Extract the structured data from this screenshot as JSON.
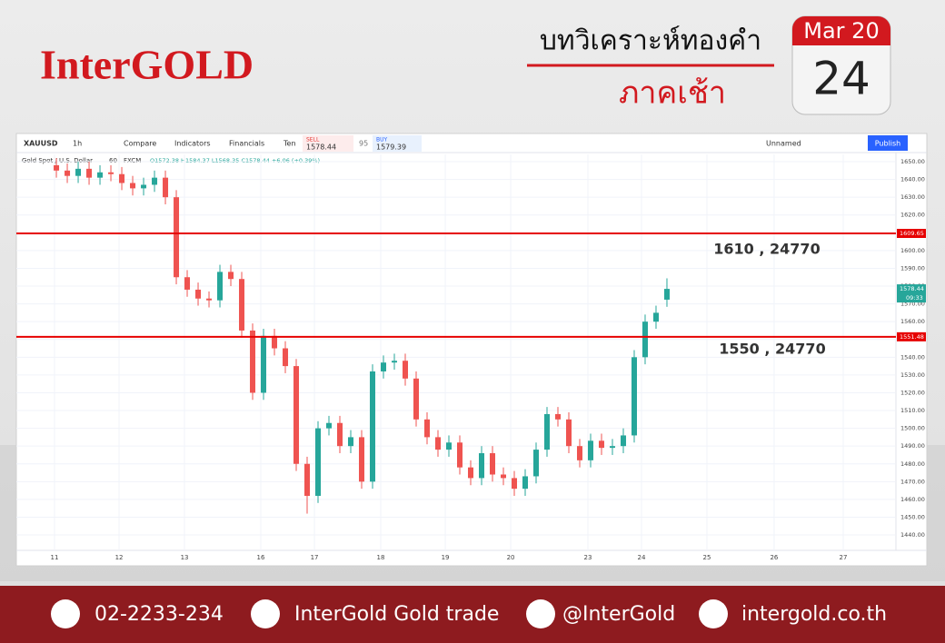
{
  "header": {
    "logo": "InterGOLD",
    "title": "บทวิเคราะห์ทองคำ",
    "subtitle": "ภาคเช้า",
    "calendar": {
      "month": "Mar 20",
      "day": "24"
    }
  },
  "toolbar": {
    "symbol": "XAUUSD",
    "interval": "1h",
    "items": [
      "Compare",
      "Indicators",
      "Financials",
      "Ten"
    ],
    "sell_label": "SELL",
    "sell": "1578.44",
    "spread": "95",
    "buy_label": "BUY",
    "buy": "1579.39",
    "layout": "Unnamed",
    "publish": "Publish"
  },
  "legend": {
    "name": "Gold Spot / U.S. Dollar",
    "interval": "60",
    "source": "FXCM",
    "ohlc": "O1572.38 H1584.37 L1568.35 C1578.44 +6.06 (+0.39%)"
  },
  "chart_data": {
    "type": "candlestick",
    "open": [
      1648,
      1645,
      1642,
      1646,
      1641,
      1644,
      1643,
      1638,
      1635,
      1637,
      1641,
      1630,
      1585,
      1578,
      1573,
      1572,
      1588,
      1584,
      1555,
      1520,
      1552,
      1545,
      1535,
      1480,
      1462,
      1500,
      1503,
      1490,
      1495,
      1470,
      1532,
      1537,
      1538,
      1528,
      1505,
      1495,
      1488,
      1492,
      1478,
      1472,
      1486,
      1474,
      1472,
      1466,
      1473,
      1488,
      1508,
      1505,
      1490,
      1482,
      1493,
      1489,
      1490,
      1496,
      1540,
      1560,
      1572.38
    ],
    "high": [
      1652,
      1649,
      1650,
      1650,
      1648,
      1648,
      1647,
      1642,
      1641,
      1645,
      1645,
      1634,
      1589,
      1582,
      1577,
      1592,
      1592,
      1588,
      1559,
      1556,
      1556,
      1549,
      1539,
      1484,
      1504,
      1507,
      1507,
      1499,
      1499,
      1536,
      1541,
      1542,
      1542,
      1532,
      1509,
      1499,
      1496,
      1496,
      1482,
      1490,
      1490,
      1478,
      1476,
      1477,
      1492,
      1512,
      1512,
      1509,
      1494,
      1497,
      1497,
      1494,
      1500,
      1544,
      1564,
      1569,
      1584.37
    ],
    "low": [
      1641,
      1638,
      1638,
      1637,
      1637,
      1639,
      1634,
      1631,
      1631,
      1633,
      1626,
      1581,
      1574,
      1569,
      1568,
      1568,
      1580,
      1551,
      1516,
      1516,
      1541,
      1531,
      1476,
      1452,
      1458,
      1496,
      1486,
      1486,
      1466,
      1466,
      1528,
      1533,
      1524,
      1501,
      1491,
      1484,
      1484,
      1474,
      1468,
      1468,
      1470,
      1468,
      1462,
      1462,
      1469,
      1484,
      1501,
      1486,
      1478,
      1478,
      1485,
      1485,
      1486,
      1492,
      1536,
      1556,
      1568.35
    ],
    "close": [
      1645,
      1642,
      1646,
      1641,
      1644,
      1643,
      1638,
      1635,
      1637,
      1641,
      1630,
      1585,
      1578,
      1573,
      1572,
      1588,
      1584,
      1555,
      1520,
      1552,
      1545,
      1535,
      1480,
      1462,
      1500,
      1503,
      1490,
      1495,
      1470,
      1532,
      1537,
      1538,
      1528,
      1505,
      1495,
      1488,
      1492,
      1478,
      1472,
      1486,
      1474,
      1472,
      1466,
      1473,
      1488,
      1508,
      1505,
      1490,
      1482,
      1493,
      1489,
      1490,
      1496,
      1540,
      1560,
      1565,
      1578.44
    ],
    "up_color": "#26a69a",
    "down_color": "#ef5350",
    "xlim": [
      -3.67,
      76.92
    ],
    "xticks": [
      {
        "value": -0.17,
        "label": "11"
      },
      {
        "value": 5.75,
        "label": "12"
      },
      {
        "value": 11.75,
        "label": "13"
      },
      {
        "value": 18.75,
        "label": "16"
      },
      {
        "value": 23.67,
        "label": "17"
      },
      {
        "value": 29.75,
        "label": "18"
      },
      {
        "value": 35.67,
        "label": "19"
      },
      {
        "value": 41.67,
        "label": "20"
      },
      {
        "value": 48.75,
        "label": "23"
      },
      {
        "value": 53.67,
        "label": "24"
      },
      {
        "value": 59.67,
        "label": "25"
      },
      {
        "value": 65.83,
        "label": "26"
      },
      {
        "value": 72.17,
        "label": "27"
      }
    ],
    "ylim": [
      1434.4,
      1654.1
    ],
    "yticks": [
      {
        "value": 1440,
        "label": "1440.00"
      },
      {
        "value": 1450,
        "label": "1450.00"
      },
      {
        "value": 1460,
        "label": "1460.00"
      },
      {
        "value": 1470,
        "label": "1470.00"
      },
      {
        "value": 1480,
        "label": "1480.00"
      },
      {
        "value": 1490,
        "label": "1490.00"
      },
      {
        "value": 1500,
        "label": "1500.00"
      },
      {
        "value": 1510,
        "label": "1510.00"
      },
      {
        "value": 1520,
        "label": "1520.00"
      },
      {
        "value": 1530,
        "label": "1530.00"
      },
      {
        "value": 1540,
        "label": "1540.00"
      },
      {
        "value": 1550,
        "label": "1550.00"
      },
      {
        "value": 1560,
        "label": "1560.00"
      },
      {
        "value": 1570,
        "label": "1570.00"
      },
      {
        "value": 1580,
        "label": "1580.00"
      },
      {
        "value": 1590,
        "label": "1590.00"
      },
      {
        "value": 1600,
        "label": "1600.00"
      },
      {
        "value": 1610,
        "label": "1610.00"
      },
      {
        "value": 1620,
        "label": "1620.00"
      },
      {
        "value": 1630,
        "label": "1630.00"
      },
      {
        "value": 1640,
        "label": "1640.00"
      },
      {
        "value": 1650,
        "label": "1650.00"
      }
    ],
    "grid": true,
    "lines": [
      {
        "value": 1609.65,
        "annotation": "1610 , 24770",
        "color": "#e60000"
      },
      {
        "value": 1551.48,
        "annotation": "1550 , 24770",
        "color": "#e60000"
      }
    ],
    "last_time": "09:33"
  },
  "footer": {
    "phone": "02-2233-234",
    "facebook": "InterGold Gold trade",
    "line": "@InterGold",
    "web": "intergold.co.th"
  }
}
